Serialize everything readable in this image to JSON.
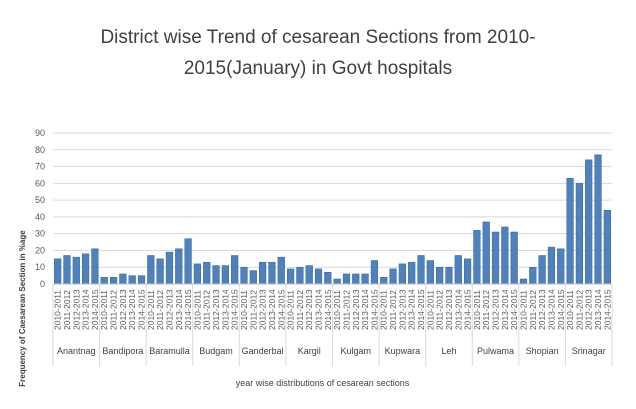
{
  "chart_data": {
    "type": "bar",
    "title": "District wise Trend of cesarean  Sections from 2010-2015(January) in Govt hospitals",
    "xlabel": "year wise distributions of cesarean sections",
    "ylabel": "Frequency of Caesarean Section in %age",
    "ylim": [
      0,
      90
    ],
    "yticks": [
      0,
      10,
      20,
      30,
      40,
      50,
      60,
      70,
      80,
      90
    ],
    "grid": true,
    "bar_color": "#4f81bd",
    "groups": [
      {
        "name": "Anantnag",
        "years": [
          "2010-2011",
          "2011-2012",
          "2012-2013",
          "2013-2014",
          "2014-2015"
        ],
        "values": [
          15,
          17,
          16,
          18,
          21
        ]
      },
      {
        "name": "Bandipora",
        "years": [
          "2010-2011",
          "2011-2012",
          "2012-2013",
          "2013-2014",
          "2014-2015"
        ],
        "values": [
          4,
          4,
          6,
          5,
          5
        ]
      },
      {
        "name": "Baramulla",
        "years": [
          "2010-2011",
          "2011-2012",
          "2012-2013",
          "2013-2014",
          "2014-2015"
        ],
        "values": [
          17,
          15,
          19,
          21,
          27
        ]
      },
      {
        "name": "Budgam",
        "years": [
          "2010-2011",
          "2011-2012",
          "2012-2013",
          "2013-2014",
          "2014-2015"
        ],
        "values": [
          12,
          13,
          11,
          11,
          17
        ]
      },
      {
        "name": "Ganderbal",
        "years": [
          "2010-2011",
          "2011-2012",
          "2012-2013",
          "2013-2014",
          "2014-2015"
        ],
        "values": [
          10,
          8,
          13,
          13,
          16
        ]
      },
      {
        "name": "Kargil",
        "years": [
          "2010-2011",
          "2011-2012",
          "2012-2013",
          "2013-2014",
          "2014-2015"
        ],
        "values": [
          9,
          10,
          11,
          9,
          7
        ]
      },
      {
        "name": "Kulgam",
        "years": [
          "2010-2011",
          "2011-2012",
          "2012-2013",
          "2013-2014",
          "2014-2015"
        ],
        "values": [
          3,
          6,
          6,
          6,
          14
        ]
      },
      {
        "name": "Kupwara",
        "years": [
          "2010-2011",
          "2011-2012",
          "2012-2013",
          "2013-2014",
          "2014-2015"
        ],
        "values": [
          4,
          9,
          12,
          13,
          17
        ]
      },
      {
        "name": "Leh",
        "years": [
          "2010-2011",
          "2011-2012",
          "2012-2013",
          "2013-2014",
          "2014-2015"
        ],
        "values": [
          14,
          10,
          10,
          17,
          15
        ]
      },
      {
        "name": "Pulwama",
        "years": [
          "2010-2011",
          "2011-2012",
          "2012-2013",
          "2013-2014",
          "2014-2015"
        ],
        "values": [
          32,
          37,
          31,
          34,
          31
        ]
      },
      {
        "name": "Shopian",
        "years": [
          "2010-2011",
          "2011-2012",
          "2012-2013",
          "2013-2014",
          "2014-2015"
        ],
        "values": [
          3,
          10,
          17,
          22,
          21
        ]
      },
      {
        "name": "Srinagar",
        "years": [
          "2010-2011",
          "2011-2012",
          "2012-2013",
          "2013-2014",
          "2014-2015"
        ],
        "values": [
          63,
          60,
          74,
          77,
          44
        ]
      }
    ]
  }
}
